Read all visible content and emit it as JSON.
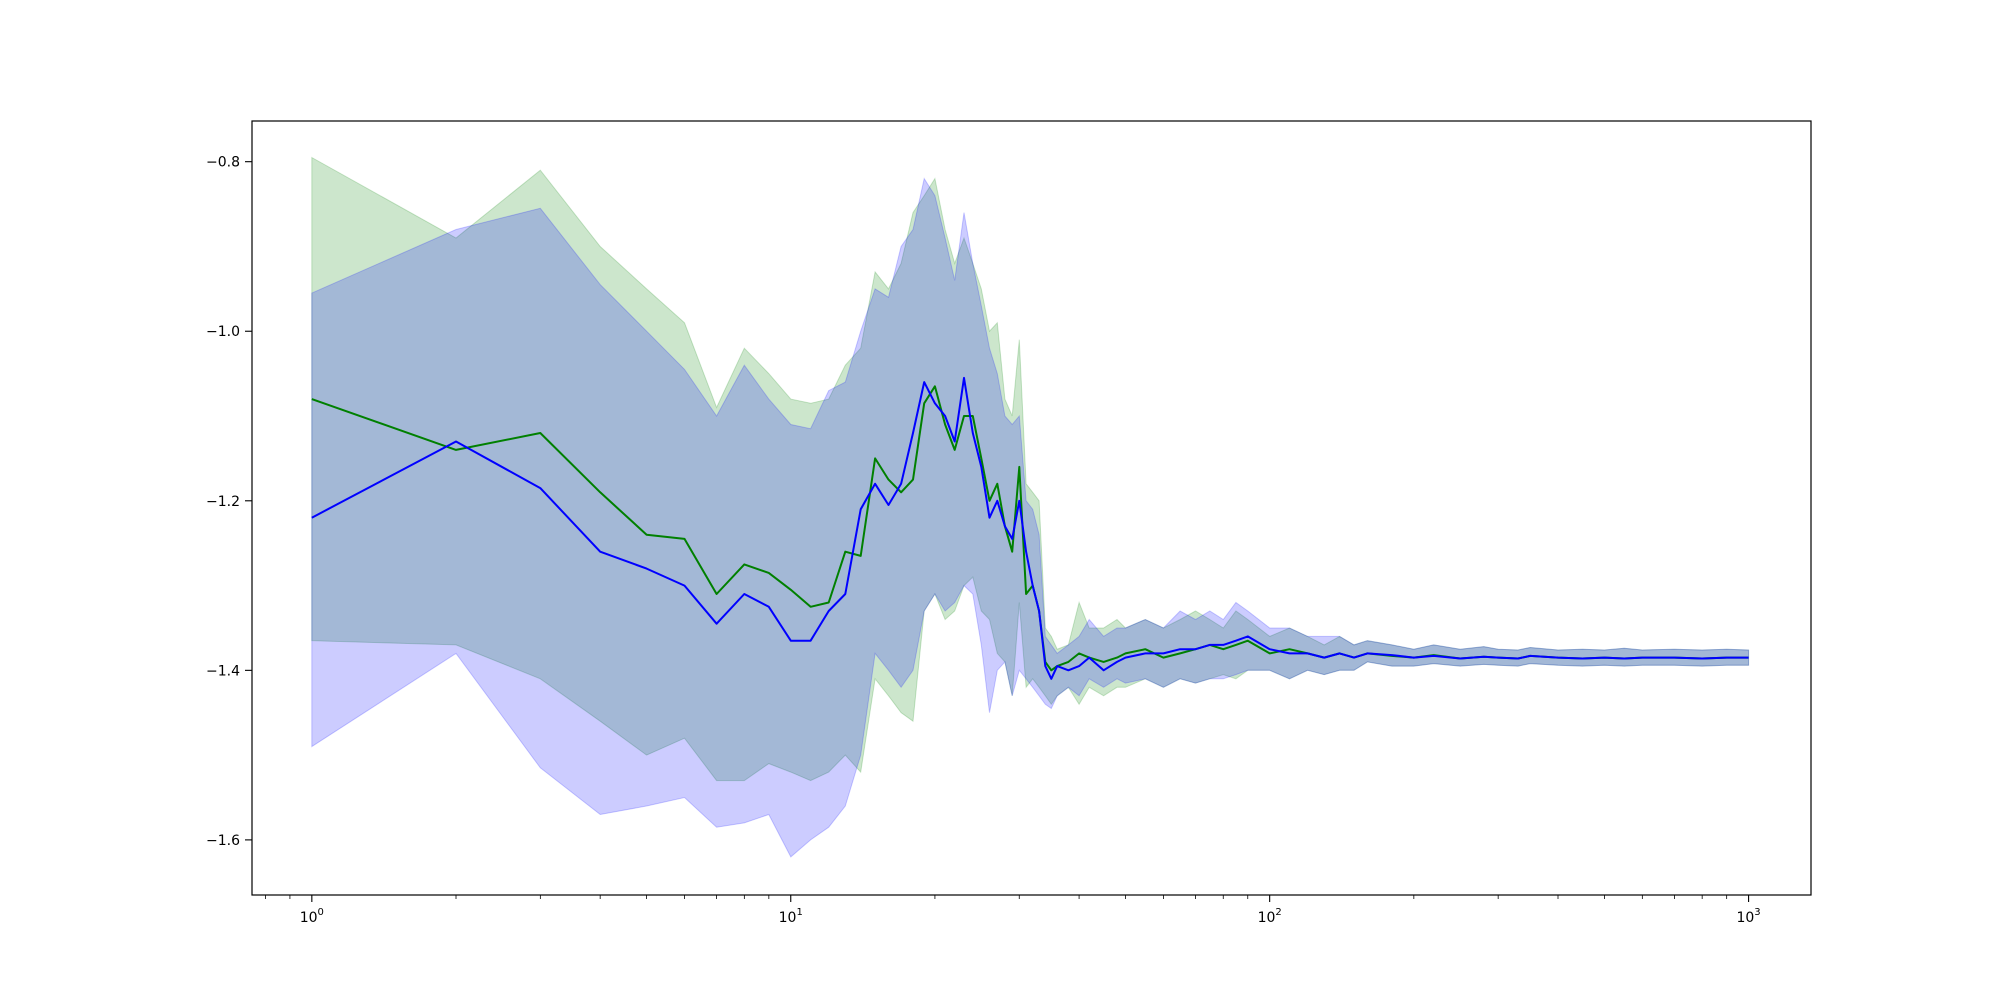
{
  "chart_data": {
    "type": "line",
    "title": "",
    "xlabel": "",
    "ylabel": "",
    "x_scale": "log",
    "xlim": [
      0.75,
      1350
    ],
    "ylim": [
      -1.665,
      -0.752
    ],
    "grid": false,
    "legend": false,
    "x_ticks": [
      {
        "value": 1,
        "base": "10",
        "exp": "0"
      },
      {
        "value": 10,
        "base": "10",
        "exp": "1"
      },
      {
        "value": 100,
        "base": "10",
        "exp": "2"
      },
      {
        "value": 1000,
        "base": "10",
        "exp": "3"
      }
    ],
    "y_ticks": [
      {
        "value": -0.8,
        "label": "−0.8"
      },
      {
        "value": -1.0,
        "label": "−1.0"
      },
      {
        "value": -1.2,
        "label": "−1.2"
      },
      {
        "value": -1.4,
        "label": "−1.4"
      },
      {
        "value": -1.6,
        "label": "−1.6"
      }
    ],
    "series": [
      {
        "color": "#008000",
        "band_color": "#008000",
        "band_opacity": 0.2,
        "x": [
          1,
          2,
          3,
          4,
          5,
          6,
          7,
          8,
          9,
          10,
          11,
          12,
          13,
          14,
          15,
          16,
          17,
          18,
          19,
          20,
          21,
          22,
          23,
          24,
          25,
          26,
          27,
          28,
          29,
          30,
          31,
          32,
          33,
          34,
          35,
          36,
          38,
          40,
          42,
          45,
          48,
          50,
          55,
          60,
          65,
          70,
          75,
          80,
          85,
          90,
          100,
          110,
          120,
          130,
          140,
          150,
          160,
          180,
          200,
          220,
          250,
          280,
          300,
          330,
          350,
          400,
          450,
          500,
          550,
          600,
          700,
          800,
          900,
          1000
        ],
        "values": [
          -1.08,
          -1.14,
          -1.12,
          -1.19,
          -1.24,
          -1.245,
          -1.31,
          -1.275,
          -1.285,
          -1.305,
          -1.325,
          -1.32,
          -1.26,
          -1.265,
          -1.15,
          -1.175,
          -1.19,
          -1.175,
          -1.085,
          -1.065,
          -1.11,
          -1.14,
          -1.1,
          -1.1,
          -1.15,
          -1.2,
          -1.18,
          -1.23,
          -1.26,
          -1.16,
          -1.31,
          -1.3,
          -1.33,
          -1.39,
          -1.4,
          -1.395,
          -1.39,
          -1.38,
          -1.385,
          -1.39,
          -1.385,
          -1.38,
          -1.375,
          -1.385,
          -1.38,
          -1.375,
          -1.37,
          -1.375,
          -1.37,
          -1.365,
          -1.38,
          -1.375,
          -1.38,
          -1.385,
          -1.38,
          -1.385,
          -1.38,
          -1.383,
          -1.385,
          -1.382,
          -1.386,
          -1.384,
          -1.385,
          -1.386,
          -1.383,
          -1.385,
          -1.386,
          -1.385,
          -1.386,
          -1.385,
          -1.385,
          -1.386,
          -1.385,
          -1.385
        ],
        "upper": [
          -0.795,
          -0.89,
          -0.81,
          -0.9,
          -0.95,
          -0.99,
          -1.09,
          -1.02,
          -1.05,
          -1.08,
          -1.085,
          -1.08,
          -1.04,
          -1.02,
          -0.93,
          -0.95,
          -0.92,
          -0.86,
          -0.84,
          -0.82,
          -0.88,
          -0.92,
          -0.89,
          -0.92,
          -0.95,
          -1.0,
          -0.99,
          -1.08,
          -1.1,
          -1.01,
          -1.18,
          -1.19,
          -1.2,
          -1.35,
          -1.36,
          -1.375,
          -1.37,
          -1.32,
          -1.35,
          -1.35,
          -1.34,
          -1.35,
          -1.34,
          -1.35,
          -1.34,
          -1.33,
          -1.34,
          -1.35,
          -1.33,
          -1.34,
          -1.36,
          -1.35,
          -1.36,
          -1.37,
          -1.36,
          -1.37,
          -1.365,
          -1.37,
          -1.375,
          -1.37,
          -1.375,
          -1.372,
          -1.375,
          -1.376,
          -1.373,
          -1.376,
          -1.375,
          -1.376,
          -1.374,
          -1.376,
          -1.375,
          -1.376,
          -1.375,
          -1.376
        ],
        "lower": [
          -1.365,
          -1.37,
          -1.41,
          -1.46,
          -1.5,
          -1.48,
          -1.53,
          -1.53,
          -1.51,
          -1.52,
          -1.53,
          -1.52,
          -1.5,
          -1.52,
          -1.41,
          -1.43,
          -1.45,
          -1.46,
          -1.33,
          -1.31,
          -1.34,
          -1.33,
          -1.3,
          -1.29,
          -1.33,
          -1.34,
          -1.38,
          -1.39,
          -1.43,
          -1.32,
          -1.42,
          -1.41,
          -1.42,
          -1.43,
          -1.44,
          -1.43,
          -1.42,
          -1.44,
          -1.42,
          -1.43,
          -1.42,
          -1.42,
          -1.41,
          -1.42,
          -1.41,
          -1.415,
          -1.41,
          -1.405,
          -1.41,
          -1.4,
          -1.4,
          -1.41,
          -1.4,
          -1.405,
          -1.4,
          -1.4,
          -1.39,
          -1.395,
          -1.395,
          -1.392,
          -1.395,
          -1.393,
          -1.394,
          -1.395,
          -1.392,
          -1.394,
          -1.395,
          -1.394,
          -1.395,
          -1.394,
          -1.394,
          -1.395,
          -1.394,
          -1.394
        ]
      },
      {
        "color": "#0000ff",
        "band_color": "#0000ff",
        "band_opacity": 0.2,
        "x": [
          1,
          2,
          3,
          4,
          5,
          6,
          7,
          8,
          9,
          10,
          11,
          12,
          13,
          14,
          15,
          16,
          17,
          18,
          19,
          20,
          21,
          22,
          23,
          24,
          25,
          26,
          27,
          28,
          29,
          30,
          31,
          32,
          33,
          34,
          35,
          36,
          38,
          40,
          42,
          45,
          48,
          50,
          55,
          60,
          65,
          70,
          75,
          80,
          85,
          90,
          100,
          110,
          120,
          130,
          140,
          150,
          160,
          180,
          200,
          220,
          250,
          280,
          300,
          330,
          350,
          400,
          450,
          500,
          550,
          600,
          700,
          800,
          900,
          1000
        ],
        "values": [
          -1.22,
          -1.13,
          -1.185,
          -1.26,
          -1.28,
          -1.3,
          -1.345,
          -1.31,
          -1.325,
          -1.365,
          -1.365,
          -1.33,
          -1.31,
          -1.21,
          -1.18,
          -1.205,
          -1.18,
          -1.12,
          -1.06,
          -1.085,
          -1.1,
          -1.13,
          -1.055,
          -1.12,
          -1.16,
          -1.22,
          -1.2,
          -1.23,
          -1.245,
          -1.2,
          -1.26,
          -1.3,
          -1.33,
          -1.395,
          -1.41,
          -1.395,
          -1.4,
          -1.395,
          -1.385,
          -1.4,
          -1.39,
          -1.385,
          -1.38,
          -1.38,
          -1.375,
          -1.375,
          -1.37,
          -1.37,
          -1.365,
          -1.36,
          -1.375,
          -1.38,
          -1.38,
          -1.385,
          -1.38,
          -1.385,
          -1.38,
          -1.382,
          -1.385,
          -1.383,
          -1.386,
          -1.384,
          -1.385,
          -1.386,
          -1.383,
          -1.385,
          -1.386,
          -1.385,
          -1.386,
          -1.385,
          -1.385,
          -1.386,
          -1.385,
          -1.385
        ],
        "upper": [
          -0.955,
          -0.88,
          -0.855,
          -0.945,
          -1.0,
          -1.045,
          -1.1,
          -1.04,
          -1.08,
          -1.11,
          -1.115,
          -1.07,
          -1.06,
          -1.0,
          -0.95,
          -0.96,
          -0.9,
          -0.88,
          -0.82,
          -0.84,
          -0.89,
          -0.94,
          -0.86,
          -0.92,
          -0.97,
          -1.02,
          -1.05,
          -1.1,
          -1.11,
          -1.1,
          -1.2,
          -1.21,
          -1.24,
          -1.36,
          -1.37,
          -1.38,
          -1.37,
          -1.36,
          -1.34,
          -1.36,
          -1.35,
          -1.35,
          -1.34,
          -1.35,
          -1.33,
          -1.34,
          -1.33,
          -1.34,
          -1.32,
          -1.33,
          -1.35,
          -1.35,
          -1.36,
          -1.36,
          -1.36,
          -1.37,
          -1.365,
          -1.37,
          -1.375,
          -1.37,
          -1.375,
          -1.372,
          -1.375,
          -1.376,
          -1.373,
          -1.376,
          -1.375,
          -1.376,
          -1.374,
          -1.376,
          -1.375,
          -1.376,
          -1.375,
          -1.376
        ],
        "lower": [
          -1.49,
          -1.38,
          -1.515,
          -1.57,
          -1.56,
          -1.55,
          -1.585,
          -1.58,
          -1.57,
          -1.62,
          -1.6,
          -1.585,
          -1.56,
          -1.5,
          -1.38,
          -1.4,
          -1.42,
          -1.4,
          -1.33,
          -1.31,
          -1.33,
          -1.32,
          -1.3,
          -1.31,
          -1.37,
          -1.45,
          -1.4,
          -1.39,
          -1.43,
          -1.4,
          -1.41,
          -1.42,
          -1.43,
          -1.44,
          -1.445,
          -1.43,
          -1.42,
          -1.43,
          -1.41,
          -1.42,
          -1.41,
          -1.415,
          -1.41,
          -1.42,
          -1.41,
          -1.415,
          -1.41,
          -1.41,
          -1.405,
          -1.4,
          -1.4,
          -1.41,
          -1.4,
          -1.405,
          -1.4,
          -1.4,
          -1.39,
          -1.395,
          -1.395,
          -1.392,
          -1.395,
          -1.393,
          -1.394,
          -1.395,
          -1.392,
          -1.394,
          -1.395,
          -1.394,
          -1.395,
          -1.394,
          -1.394,
          -1.395,
          -1.394,
          -1.394
        ]
      }
    ]
  }
}
